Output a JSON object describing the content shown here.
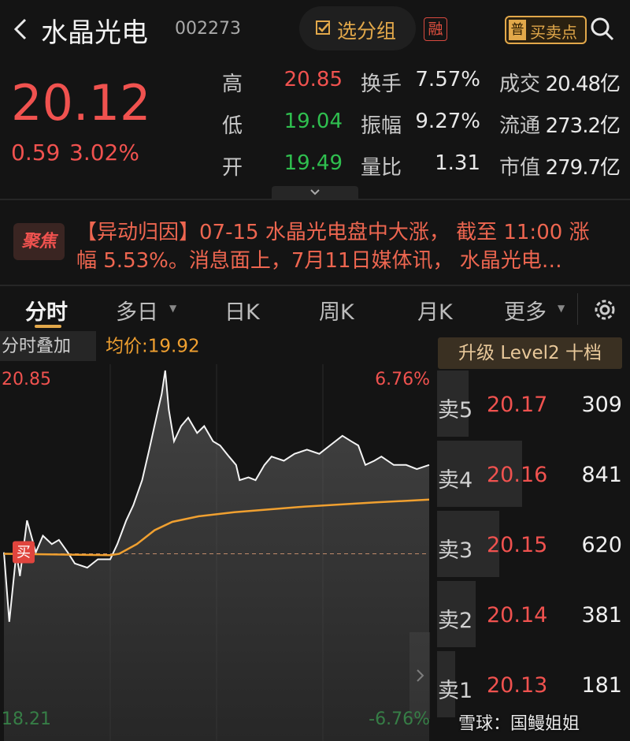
{
  "header": {
    "title": "水晶光电",
    "code": "002273",
    "group_button": "选分组",
    "margin_badge": "融",
    "signal_badge_icon": "普",
    "signal_badge": "买卖点"
  },
  "quote": {
    "price": 20.12,
    "change": 0.59,
    "change_pct": "3.02%",
    "stats": [
      {
        "label": "高",
        "value": 20.85
      },
      {
        "label": "低",
        "value": 19.04
      },
      {
        "label": "开",
        "value": 19.49
      },
      {
        "label": "换手",
        "value": "7.57%"
      },
      {
        "label": "振幅",
        "value": "9.27%"
      },
      {
        "label": "量比",
        "value": 1.31
      },
      {
        "label": "成交",
        "value": "20.48亿"
      },
      {
        "label": "流通",
        "value": "273.2亿"
      },
      {
        "label": "市值",
        "value": "279.7亿"
      }
    ]
  },
  "news": {
    "badge": "聚焦",
    "lines": [
      "【异动归因】07-15 水晶光电盘中大涨， 截至 11:00 涨",
      "幅 5.53%。消息面上，7月11日媒体讯， 水晶光电…"
    ]
  },
  "tabs": [
    "分时",
    "多日",
    "日K",
    "周K",
    "月K",
    "更多"
  ],
  "chart": {
    "overlay_button": "分时叠加",
    "avg_label": "均价:19.92",
    "y_top": 20.85,
    "y_bottom": 18.21,
    "pct_top": "6.76%",
    "pct_bottom": "-6.76%",
    "buy_marker": "买",
    "x": [
      0,
      3,
      7,
      9,
      13,
      18,
      22,
      27,
      31,
      36,
      40,
      47,
      53,
      60,
      64,
      69,
      73,
      78,
      82,
      87,
      89,
      91,
      93,
      96,
      100,
      104,
      109,
      113,
      118,
      122,
      127,
      131,
      133,
      138,
      142,
      147,
      151,
      158,
      164,
      171,
      178,
      184,
      191,
      196,
      200,
      204,
      209,
      213,
      220,
      227,
      233,
      240
    ],
    "price": [
      19.54,
      19.04,
      19.54,
      19.37,
      19.77,
      19.54,
      19.66,
      19.6,
      19.63,
      19.54,
      19.46,
      19.43,
      19.49,
      19.49,
      19.6,
      19.77,
      19.88,
      20.06,
      20.28,
      20.57,
      20.68,
      20.85,
      20.57,
      20.34,
      20.45,
      20.51,
      20.4,
      20.45,
      20.34,
      20.31,
      20.23,
      20.17,
      20.06,
      20.08,
      20.06,
      20.17,
      20.23,
      20.2,
      20.25,
      20.28,
      20.25,
      20.31,
      20.38,
      20.34,
      20.31,
      20.17,
      20.2,
      20.23,
      20.17,
      20.17,
      20.14,
      20.17
    ],
    "avg_x": [
      0,
      60,
      65,
      75,
      85,
      95,
      110,
      130,
      170,
      210,
      240
    ],
    "avg": [
      19.53,
      19.52,
      19.53,
      19.6,
      19.7,
      19.76,
      19.8,
      19.83,
      19.87,
      19.9,
      19.92
    ]
  },
  "order_book": {
    "upgrade_button": "升级 Level2 十档",
    "asks": [
      {
        "label": "卖5",
        "price": 20.17,
        "volume": 309
      },
      {
        "label": "卖4",
        "price": 20.16,
        "volume": 841
      },
      {
        "label": "卖3",
        "price": 20.15,
        "volume": 620
      },
      {
        "label": "卖2",
        "price": 20.14,
        "volume": 381
      },
      {
        "label": "卖1",
        "price": 20.13,
        "volume": 181
      }
    ]
  },
  "watermark": "雪球：国鳗姐姐"
}
